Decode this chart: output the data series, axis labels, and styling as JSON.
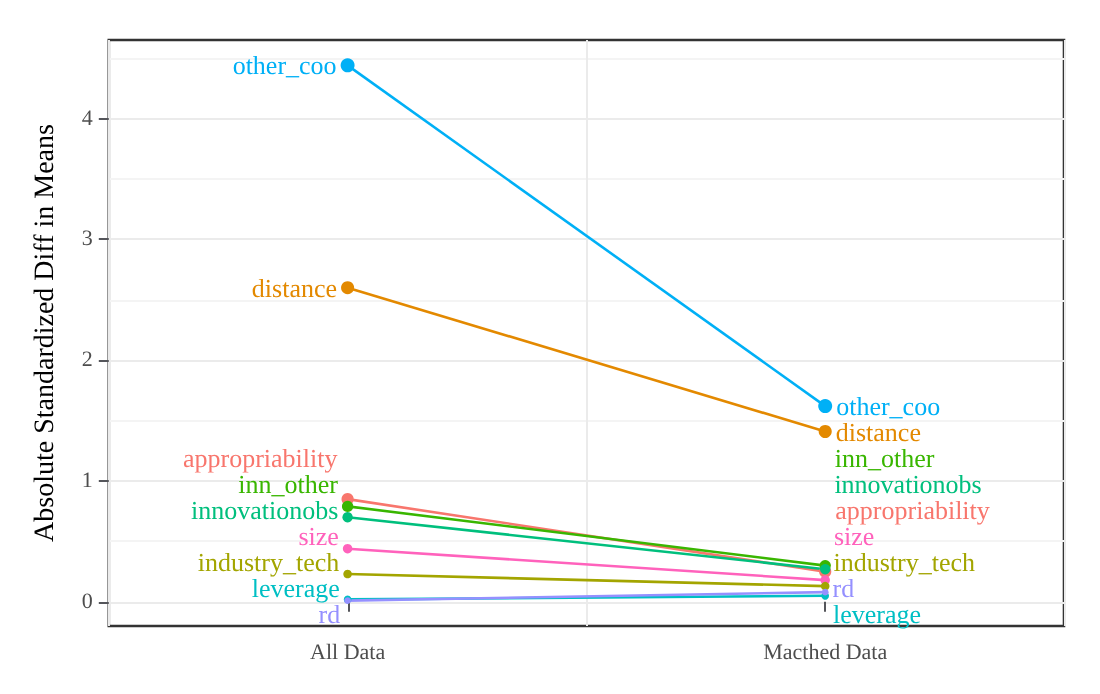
{
  "chart_data": {
    "type": "line",
    "ylabel": "Absolute Standardized Diff in Means",
    "categories": [
      "All Data",
      "Macthed Data"
    ],
    "series": [
      {
        "name": "other_coo",
        "color": "#00b0f6",
        "values": [
          4.44,
          1.62
        ]
      },
      {
        "name": "distance",
        "color": "#e38900",
        "values": [
          2.6,
          1.41
        ]
      },
      {
        "name": "appropriability",
        "color": "#f8766d",
        "values": [
          0.85,
          0.25
        ]
      },
      {
        "name": "inn_other",
        "color": "#39b600",
        "values": [
          0.79,
          0.3
        ]
      },
      {
        "name": "innovationobs",
        "color": "#00bf7d",
        "values": [
          0.7,
          0.27
        ]
      },
      {
        "name": "size",
        "color": "#ff62bc",
        "values": [
          0.44,
          0.18
        ]
      },
      {
        "name": "industry_tech",
        "color": "#a3a500",
        "values": [
          0.23,
          0.13
        ]
      },
      {
        "name": "leverage",
        "color": "#00bfc4",
        "values": [
          0.02,
          0.05
        ]
      },
      {
        "name": "rd",
        "color": "#9590ff",
        "values": [
          0.01,
          0.08
        ]
      }
    ],
    "ylim": [
      -0.2,
      4.65
    ],
    "yticks": [
      0,
      1,
      2,
      3,
      4
    ],
    "grid": true,
    "marker": "circle",
    "line_style": "solid"
  }
}
